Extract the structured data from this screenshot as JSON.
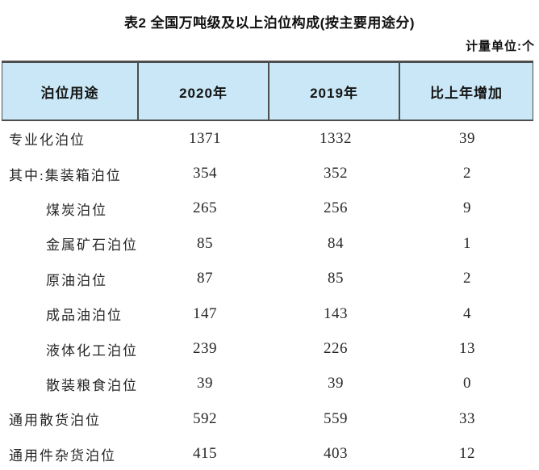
{
  "page": {
    "title": "表2 全国万吨级及以上泊位构成(按主要用途分)",
    "unit_label": "计量单位:个"
  },
  "colors": {
    "header_bg": "#c9e7f6",
    "border": "#4d4d4d",
    "text": "#1c1c1c"
  },
  "table": {
    "columns": [
      "泊位用途",
      "2020年",
      "2019年",
      "比上年增加"
    ],
    "rows": [
      {
        "label": "专业化泊位",
        "v2020": "1371",
        "v2019": "1332",
        "delta": "39",
        "indent": false
      },
      {
        "label": "其中:集装箱泊位",
        "v2020": "354",
        "v2019": "352",
        "delta": "2",
        "indent": false
      },
      {
        "label": "煤炭泊位",
        "v2020": "265",
        "v2019": "256",
        "delta": "9",
        "indent": true
      },
      {
        "label": "金属矿石泊位",
        "v2020": "85",
        "v2019": "84",
        "delta": "1",
        "indent": true
      },
      {
        "label": "原油泊位",
        "v2020": "87",
        "v2019": "85",
        "delta": "2",
        "indent": true
      },
      {
        "label": "成品油泊位",
        "v2020": "147",
        "v2019": "143",
        "delta": "4",
        "indent": true
      },
      {
        "label": "液体化工泊位",
        "v2020": "239",
        "v2019": "226",
        "delta": "13",
        "indent": true
      },
      {
        "label": "散装粮食泊位",
        "v2020": "39",
        "v2019": "39",
        "delta": "0",
        "indent": true
      },
      {
        "label": "通用散货泊位",
        "v2020": "592",
        "v2019": "559",
        "delta": "33",
        "indent": false
      },
      {
        "label": "通用件杂货泊位",
        "v2020": "415",
        "v2019": "403",
        "delta": "12",
        "indent": false
      }
    ]
  },
  "chart_data": {
    "type": "table",
    "title": "表2 全国万吨级及以上泊位构成(按主要用途分)",
    "unit": "计量单位:个",
    "columns": [
      "泊位用途",
      "2020年",
      "2019年",
      "比上年增加"
    ],
    "rows": [
      [
        "专业化泊位",
        1371,
        1332,
        39
      ],
      [
        "其中:集装箱泊位",
        354,
        352,
        2
      ],
      [
        "煤炭泊位",
        265,
        256,
        9
      ],
      [
        "金属矿石泊位",
        85,
        84,
        1
      ],
      [
        "原油泊位",
        87,
        85,
        2
      ],
      [
        "成品油泊位",
        147,
        143,
        4
      ],
      [
        "液体化工泊位",
        239,
        226,
        13
      ],
      [
        "散装粮食泊位",
        39,
        39,
        0
      ],
      [
        "通用散货泊位",
        592,
        559,
        33
      ],
      [
        "通用件杂货泊位",
        415,
        403,
        12
      ]
    ]
  }
}
